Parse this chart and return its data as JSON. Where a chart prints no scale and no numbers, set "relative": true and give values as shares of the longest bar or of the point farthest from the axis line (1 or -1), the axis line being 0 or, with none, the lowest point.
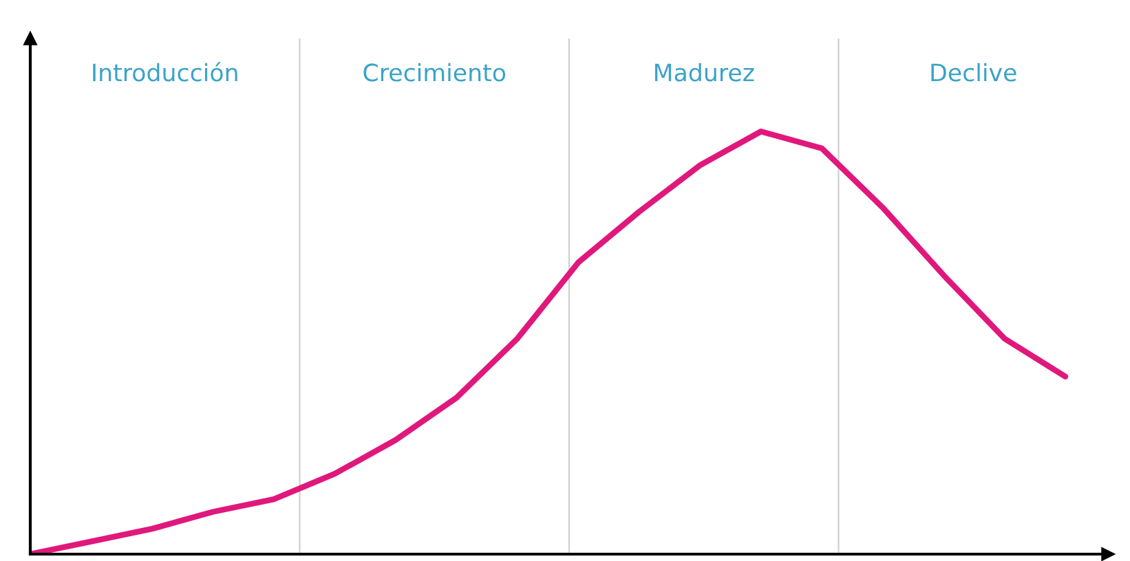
{
  "chart_data": {
    "type": "line",
    "relative": true,
    "categories": [
      null,
      null,
      null,
      null,
      null,
      null,
      null,
      null,
      null,
      null,
      null,
      null,
      null,
      null,
      null,
      null,
      null,
      null
    ],
    "series": [
      {
        "color": "#e0187c",
        "values": [
          0,
          0.03,
          0.06,
          0.1,
          0.13,
          0.19,
          0.27,
          0.37,
          0.51,
          0.69,
          0.81,
          0.92,
          1,
          0.96,
          0.82,
          0.66,
          0.51,
          0.42
        ]
      }
    ],
    "annotations": [
      "Introducción",
      "Crecimiento",
      "Madurez",
      "Declive"
    ],
    "legend": false,
    "marker": "none",
    "line_style": "solid"
  }
}
